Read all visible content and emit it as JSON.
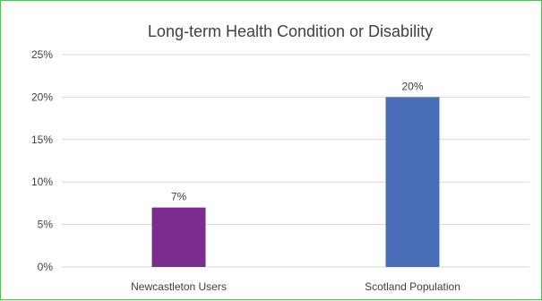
{
  "chart_data": {
    "type": "bar",
    "title": "Long-term Health Condition or Disability",
    "categories": [
      "Newcastleton Users",
      "Scotland Population"
    ],
    "values": [
      7,
      20
    ],
    "data_labels": [
      "7%",
      "20%"
    ],
    "bar_colors": [
      "#7a2d8c",
      "#4a6db8"
    ],
    "ylim": [
      0,
      25
    ],
    "y_ticks": [
      0,
      5,
      10,
      15,
      20,
      25
    ],
    "y_tick_labels": [
      "0%",
      "5%",
      "10%",
      "15%",
      "20%",
      "25%"
    ],
    "grid": true,
    "legend": "none",
    "xlabel": "",
    "ylabel": ""
  },
  "colors": {
    "border": "#5cb85c",
    "grid": "#d9d9d9",
    "text": "#404040"
  }
}
